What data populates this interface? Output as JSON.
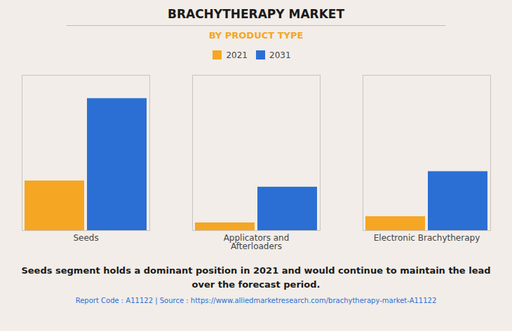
{
  "chart_data": {
    "type": "bar",
    "title": "BRACHYTHERAPY MARKET",
    "subtitle": "BY PRODUCT TYPE",
    "categories": [
      "Seeds",
      "Applicators and\nAfterloaders",
      "Electronic Brachytherapy"
    ],
    "series": [
      {
        "name": "2021",
        "color": "#F5A623",
        "values": [
          3.2,
          0.5,
          0.9
        ]
      },
      {
        "name": "2031",
        "color": "#2B6FD4",
        "values": [
          8.5,
          2.8,
          3.8
        ]
      }
    ],
    "ylim": [
      0,
      10
    ],
    "yticks": [],
    "grid": false,
    "legend": "top",
    "tick_labels": "x",
    "annotations": [
      "Seeds segment holds a dominant position in 2021 and would continue to maintain the lead\nover the forecast period.",
      "Report Code : A11122  |  Source : https://www.alliedmarketresearch.com/brachytherapy-market-A11122"
    ]
  }
}
